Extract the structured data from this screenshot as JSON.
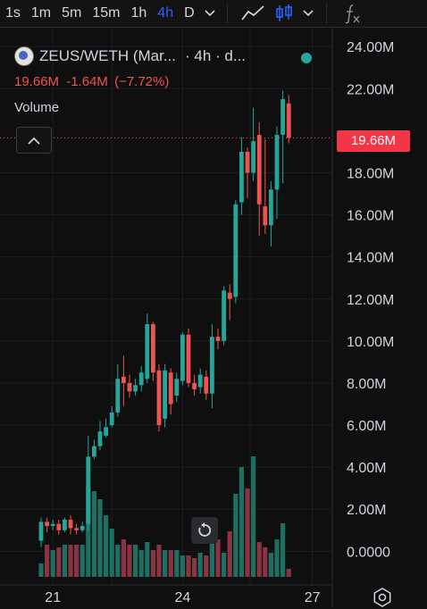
{
  "toolbar": {
    "timeframes": [
      "1s",
      "1m",
      "5m",
      "15m",
      "1h",
      "4h",
      "D"
    ],
    "active": "4h"
  },
  "legend": {
    "pair": "ZEUS/WETH (Mar...",
    "interval": "· 4h · d...",
    "last_price": "19.66M",
    "change": "-1.64M",
    "change_pct": "(−7.72%)"
  },
  "volume_label": "Volume",
  "price_tag": "19.66M",
  "colors": {
    "up": "#26a69a",
    "down": "#ef5350",
    "up_vol": "#1e6e62",
    "down_vol": "#8a3342",
    "tag": "#f23645"
  },
  "chart_data": {
    "type": "candlestick",
    "y_unit": "M",
    "ylim": [
      -1.6,
      24.9
    ],
    "y_ticks": [
      "24.00M",
      "22.00M",
      "18.00M",
      "16.00M",
      "14.00M",
      "12.00M",
      "10.00M",
      "8.00M",
      "6.00M",
      "4.00M",
      "2.00M",
      "0.0000"
    ],
    "y_tick_values": [
      24,
      22,
      18,
      16,
      14,
      12,
      10,
      8,
      6,
      4,
      2,
      0
    ],
    "x_ticks": [
      "21",
      "24",
      "27"
    ],
    "x_tick_index": [
      2,
      24,
      46
    ],
    "current_price": 19.66,
    "candles": [
      [
        0.5,
        1.4,
        0.2,
        1.6
      ],
      [
        1.4,
        1.2,
        0.9,
        1.6
      ],
      [
        1.2,
        1.3,
        1.0,
        1.5
      ],
      [
        1.3,
        1.0,
        0.8,
        1.5
      ],
      [
        1.0,
        1.5,
        0.9,
        1.6
      ],
      [
        1.5,
        1.1,
        0.8,
        1.7
      ],
      [
        1.1,
        1.0,
        0.8,
        1.3
      ],
      [
        1.0,
        1.2,
        0.9,
        1.4
      ],
      [
        1.3,
        4.5,
        1.0,
        5.5
      ],
      [
        4.5,
        5.0,
        4.4,
        5.3
      ],
      [
        5.0,
        5.7,
        4.8,
        6.2
      ],
      [
        5.5,
        5.9,
        5.4,
        6.3
      ],
      [
        6.0,
        6.6,
        5.9,
        6.9
      ],
      [
        6.6,
        8.2,
        6.4,
        8.9
      ],
      [
        8.3,
        8.0,
        6.9,
        9.3
      ],
      [
        8.0,
        7.6,
        7.3,
        8.4
      ],
      [
        7.6,
        7.9,
        7.4,
        8.2
      ],
      [
        7.9,
        8.5,
        7.6,
        8.8
      ],
      [
        8.2,
        10.8,
        8.0,
        11.3
      ],
      [
        10.8,
        8.5,
        8.1,
        10.9
      ],
      [
        8.6,
        6.0,
        5.7,
        8.9
      ],
      [
        6.3,
        8.6,
        5.9,
        8.9
      ],
      [
        8.5,
        7.0,
        6.5,
        8.7
      ],
      [
        7.4,
        8.2,
        7.1,
        8.5
      ],
      [
        8.1,
        10.3,
        7.9,
        10.4
      ],
      [
        10.3,
        8.0,
        7.8,
        10.6
      ],
      [
        8.0,
        7.7,
        7.4,
        8.4
      ],
      [
        7.8,
        8.4,
        7.5,
        8.7
      ],
      [
        8.3,
        7.5,
        7.2,
        8.6
      ],
      [
        7.5,
        10.2,
        6.8,
        10.8
      ],
      [
        10.2,
        10.0,
        9.6,
        10.6
      ],
      [
        10.0,
        12.4,
        9.8,
        12.6
      ],
      [
        12.3,
        12.0,
        11.0,
        12.7
      ],
      [
        12.1,
        16.5,
        11.8,
        16.7
      ],
      [
        16.6,
        19.0,
        16.0,
        19.7
      ],
      [
        19.0,
        18.0,
        16.8,
        19.2
      ],
      [
        18.0,
        19.5,
        17.6,
        21.1
      ],
      [
        19.8,
        16.5,
        15.0,
        20.4
      ],
      [
        16.4,
        15.5,
        15.1,
        19.6
      ],
      [
        15.5,
        17.2,
        14.5,
        17.6
      ],
      [
        17.2,
        19.8,
        15.8,
        20.2
      ],
      [
        19.8,
        21.5,
        17.5,
        21.9
      ],
      [
        21.3,
        19.66,
        19.4,
        21.7
      ]
    ],
    "volume_unit": "M",
    "volumes": [
      0.5,
      1.2,
      1.0,
      1.1,
      1.2,
      1.2,
      1.2,
      1.2,
      3.4,
      3.2,
      2.9,
      2.3,
      1.8,
      1.2,
      1.4,
      1.2,
      1.2,
      1.0,
      1.3,
      1.0,
      1.2,
      1.0,
      1.0,
      1.0,
      0.8,
      0.8,
      0.7,
      0.9,
      0.8,
      1.6,
      1.4,
      0.9,
      1.7,
      3.1,
      4.1,
      3.3,
      4.5,
      1.3,
      1.1,
      0.9,
      1.4,
      2.0,
      0.3
    ],
    "volume_max": 5.0
  }
}
